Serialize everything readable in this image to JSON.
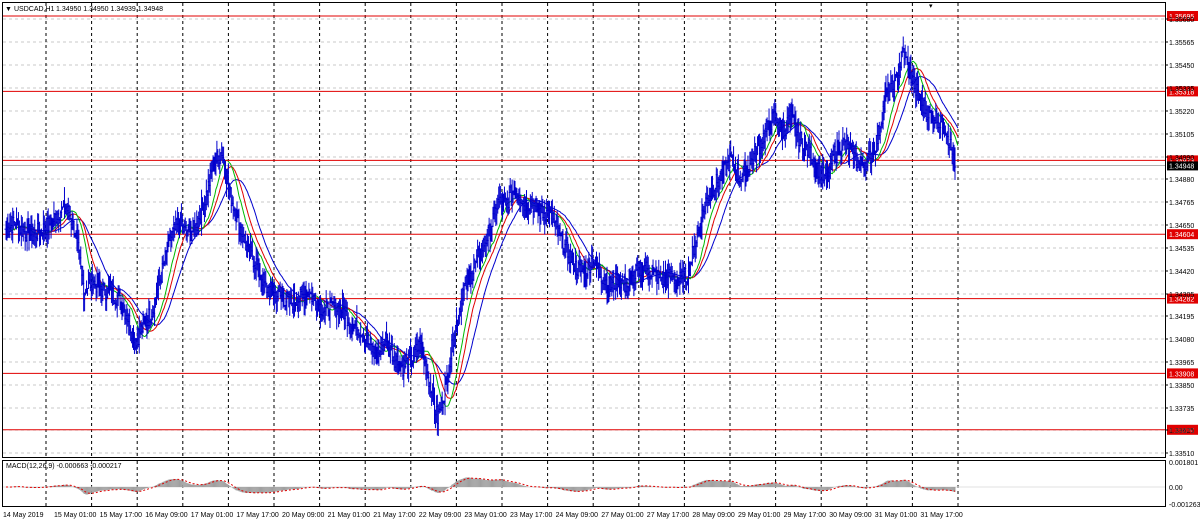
{
  "header": {
    "symbol": "USDCAD,H1",
    "ohlc": "1.34950 1.34950 1.34939 1.34948"
  },
  "macd": {
    "label": "MACD(12,26,9) -0.000663 -0.000217",
    "ticks": [
      "0.001801",
      "0.00",
      "-0.001263"
    ]
  },
  "colors": {
    "candle": "#0000cd",
    "ma_fast": "#00b800",
    "ma_mid": "#e00000",
    "ma_slow": "#0000cd",
    "level": "#e00000",
    "macd_signal": "#e00000",
    "macd_hist": "#a0a0a0"
  },
  "chart_data": {
    "type": "line",
    "title": "USDCAD,H1",
    "ylim": [
      1.3351,
      1.3571
    ],
    "yticks": [
      "1.35680",
      "1.35565",
      "1.35450",
      "1.35335",
      "1.35220",
      "1.35105",
      "1.34990",
      "1.34880",
      "1.34765",
      "1.34650",
      "1.34535",
      "1.34420",
      "1.34305",
      "1.34195",
      "1.34080",
      "1.33965",
      "1.33850",
      "1.33735",
      "1.33625",
      "1.33510"
    ],
    "xticks": [
      "14 May 2019",
      "15 May 01:00",
      "15 May 17:00",
      "16 May 09:00",
      "17 May 01:00",
      "17 May 17:00",
      "20 May 09:00",
      "21 May 01:00",
      "21 May 17:00",
      "22 May 09:00",
      "23 May 01:00",
      "23 May 17:00",
      "24 May 09:00",
      "27 May 01:00",
      "27 May 17:00",
      "28 May 09:00",
      "29 May 01:00",
      "29 May 17:00",
      "30 May 09:00",
      "31 May 01:00",
      "31 May 17:00"
    ],
    "levels": [
      "1.35695",
      "1.35318",
      "1.34973",
      "1.34604",
      "1.34282",
      "1.33908",
      "1.33626"
    ],
    "current_price": "1.34948",
    "series": [
      {
        "values": [
          1.3463,
          1.3466,
          1.3462,
          1.346,
          1.3462,
          1.3465,
          1.3471,
          1.3474,
          1.3462,
          1.3432,
          1.3437,
          1.3433,
          1.3431,
          1.3429,
          1.342,
          1.3407,
          1.3415,
          1.3423,
          1.344,
          1.3458,
          1.3466,
          1.346,
          1.3464,
          1.3476,
          1.3495,
          1.3502,
          1.348,
          1.3465,
          1.3452,
          1.3446,
          1.3434,
          1.3431,
          1.3429,
          1.3426,
          1.3428,
          1.3432,
          1.3426,
          1.3422,
          1.3424,
          1.3423,
          1.3416,
          1.3413,
          1.3406,
          1.3399,
          1.3408,
          1.3399,
          1.3394,
          1.3398,
          1.3405,
          1.3388,
          1.3368,
          1.3385,
          1.3412,
          1.3432,
          1.3441,
          1.3452,
          1.3461,
          1.3476,
          1.3476,
          1.3484,
          1.3476,
          1.3476,
          1.3471,
          1.3471,
          1.3461,
          1.3452,
          1.3444,
          1.3441,
          1.3448,
          1.344,
          1.3434,
          1.3438,
          1.3434,
          1.3441,
          1.3444,
          1.344,
          1.3438,
          1.3439,
          1.3437,
          1.344,
          1.3458,
          1.3476,
          1.3484,
          1.349,
          1.3498,
          1.3488,
          1.3494,
          1.3502,
          1.3511,
          1.3519,
          1.3512,
          1.3518,
          1.3508,
          1.3502,
          1.3494,
          1.3487,
          1.3501,
          1.3506,
          1.3501,
          1.3495,
          1.3498,
          1.3508,
          1.353,
          1.3534,
          1.3552,
          1.3538,
          1.3526,
          1.3521,
          1.3518,
          1.3513,
          1.3494
        ]
      }
    ]
  }
}
